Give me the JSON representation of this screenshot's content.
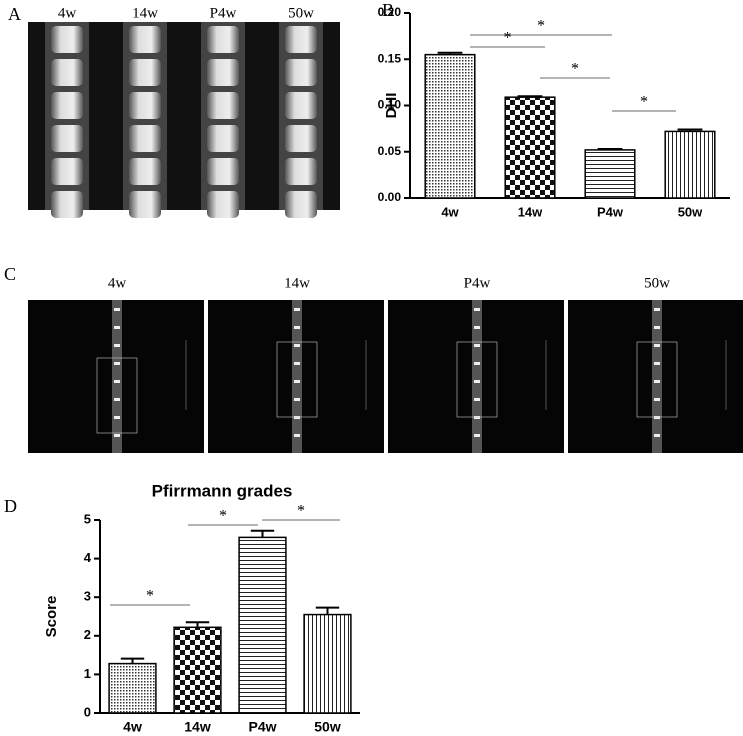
{
  "panels": {
    "a": {
      "label": "A",
      "images": [
        "4w",
        "14w",
        "P4w",
        "50w"
      ]
    },
    "c": {
      "label": "C",
      "images": [
        "4w",
        "14w",
        "P4w",
        "50w"
      ]
    }
  },
  "chart_data": [
    {
      "type": "bar",
      "panel_label": "B",
      "ylabel": "DHI",
      "categories": [
        "4w",
        "14w",
        "P4w",
        "50w"
      ],
      "values": [
        0.155,
        0.109,
        0.052,
        0.072
      ],
      "errors": [
        0.002,
        0.001,
        0.001,
        0.002
      ],
      "color": "#000000",
      "ylim": [
        0,
        0.2
      ],
      "yticks": [
        {
          "value": 0,
          "label": "0.00"
        },
        {
          "value": 0.05,
          "label": "0.05"
        },
        {
          "value": 0.1,
          "label": "0.10"
        },
        {
          "value": 0.15,
          "label": "0.15"
        },
        {
          "value": 0.2,
          "label": "0.20"
        }
      ],
      "annotations": [
        "*",
        "*",
        "*",
        "*"
      ]
    },
    {
      "type": "bar",
      "panel_label": "D",
      "title": "Pfirrmann grades",
      "ylabel": "Score",
      "categories": [
        "4w",
        "14w",
        "P4w",
        "50w"
      ],
      "values": [
        1.28,
        2.22,
        4.55,
        2.55
      ],
      "errors": [
        0.13,
        0.13,
        0.17,
        0.18
      ],
      "color": "#000000",
      "ylim": [
        0,
        5
      ],
      "yticks": [
        0,
        1,
        2,
        3,
        4,
        5
      ],
      "annotations": [
        "*",
        "*",
        "*"
      ]
    }
  ]
}
